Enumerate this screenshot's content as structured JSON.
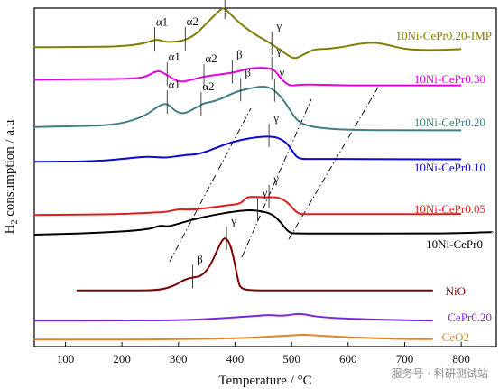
{
  "chart_data": {
    "type": "line",
    "xlabel": "Temperature / °C",
    "ylabel": "H2 consumption / a.u",
    "xlim": [
      45,
      862
    ],
    "x_ticks": [
      100,
      200,
      300,
      400,
      500,
      600,
      700,
      800
    ],
    "grid": false,
    "legend": "inline labels at right of each curve",
    "series": [
      {
        "name": "10Ni-CePr0.20-IMP",
        "color": "#808000",
        "points": [
          [
            45,
            0.62
          ],
          [
            120,
            0.62
          ],
          [
            200,
            0.64
          ],
          [
            240,
            0.75
          ],
          [
            255,
            0.86
          ],
          [
            265,
            0.88
          ],
          [
            275,
            0.8
          ],
          [
            290,
            0.8
          ],
          [
            305,
            0.83
          ],
          [
            315,
            0.9
          ],
          [
            330,
            1.05
          ],
          [
            350,
            1.45
          ],
          [
            370,
            1.85
          ],
          [
            380,
            2.0
          ],
          [
            390,
            1.8
          ],
          [
            405,
            1.5
          ],
          [
            430,
            1.12
          ],
          [
            450,
            0.9
          ],
          [
            470,
            0.66
          ],
          [
            490,
            0.38
          ],
          [
            505,
            0.2
          ],
          [
            520,
            0.35
          ],
          [
            540,
            0.55
          ],
          [
            560,
            0.55
          ],
          [
            590,
            0.62
          ],
          [
            620,
            0.74
          ],
          [
            645,
            0.78
          ],
          [
            665,
            0.72
          ],
          [
            700,
            0.55
          ],
          [
            730,
            0.52
          ],
          [
            760,
            0.52
          ],
          [
            800,
            0.55
          ]
        ],
        "annotations": [
          {
            "label": "α1",
            "x": 258
          },
          {
            "label": "α2",
            "x": 312
          },
          {
            "label": "β",
            "x": 382
          },
          {
            "label": "γ",
            "x": 465
          }
        ]
      },
      {
        "name": "10Ni-CePr0.30",
        "color": "#e600e6",
        "points": [
          [
            45,
            0.52
          ],
          [
            130,
            0.55
          ],
          [
            200,
            0.55
          ],
          [
            240,
            0.6
          ],
          [
            262,
            0.9
          ],
          [
            275,
            0.78
          ],
          [
            300,
            0.42
          ],
          [
            320,
            0.5
          ],
          [
            340,
            0.62
          ],
          [
            360,
            0.7
          ],
          [
            380,
            0.75
          ],
          [
            400,
            0.82
          ],
          [
            425,
            0.97
          ],
          [
            445,
            1.0
          ],
          [
            460,
            0.98
          ],
          [
            470,
            0.9
          ],
          [
            480,
            0.6
          ],
          [
            490,
            0.38
          ],
          [
            500,
            0.28
          ],
          [
            520,
            0.34
          ],
          [
            550,
            0.32
          ],
          [
            600,
            0.3
          ],
          [
            700,
            0.3
          ],
          [
            800,
            0.3
          ]
        ],
        "annotations": [
          {
            "label": "α1",
            "x": 280
          },
          {
            "label": "α2",
            "x": 345
          },
          {
            "label": "β",
            "x": 395
          },
          {
            "label": "γ",
            "x": 465
          }
        ]
      },
      {
        "name": "10Ni-CePr0.20",
        "color": "#3f7f7f",
        "points": [
          [
            45,
            0.42
          ],
          [
            120,
            0.45
          ],
          [
            190,
            0.5
          ],
          [
            240,
            0.85
          ],
          [
            265,
            1.3
          ],
          [
            280,
            1.4
          ],
          [
            295,
            1.05
          ],
          [
            310,
            0.95
          ],
          [
            330,
            1.2
          ],
          [
            345,
            1.4
          ],
          [
            360,
            1.45
          ],
          [
            380,
            1.62
          ],
          [
            400,
            1.85
          ],
          [
            425,
            2.0
          ],
          [
            450,
            2.1
          ],
          [
            465,
            2.0
          ],
          [
            480,
            1.7
          ],
          [
            495,
            1.2
          ],
          [
            510,
            0.65
          ],
          [
            530,
            0.45
          ],
          [
            560,
            0.36
          ],
          [
            600,
            0.3
          ],
          [
            700,
            0.28
          ],
          [
            800,
            0.28
          ]
        ],
        "annotations": [
          {
            "label": "α1",
            "x": 280
          },
          {
            "label": "α2",
            "x": 340
          },
          {
            "label": "β",
            "x": 410
          },
          {
            "label": "γ",
            "x": 470
          }
        ]
      },
      {
        "name": "10Ni-CePr0.10",
        "color": "#0a0ad0",
        "points": [
          [
            45,
            0.1
          ],
          [
            150,
            0.12
          ],
          [
            210,
            0.3
          ],
          [
            240,
            0.42
          ],
          [
            260,
            0.38
          ],
          [
            280,
            0.35
          ],
          [
            300,
            0.46
          ],
          [
            315,
            0.52
          ],
          [
            330,
            0.55
          ],
          [
            350,
            0.72
          ],
          [
            380,
            1.15
          ],
          [
            410,
            1.45
          ],
          [
            440,
            1.62
          ],
          [
            460,
            1.66
          ],
          [
            475,
            1.6
          ],
          [
            490,
            1.3
          ],
          [
            500,
            0.85
          ],
          [
            510,
            0.3
          ],
          [
            530,
            0.26
          ],
          [
            560,
            0.28
          ],
          [
            700,
            0.25
          ],
          [
            800,
            0.25
          ]
        ],
        "annotations": [
          {
            "label": "γ",
            "x": 460
          }
        ]
      },
      {
        "name": "10Ni-CePr0.05",
        "color": "#dc1e1e",
        "points": [
          [
            45,
            0.2
          ],
          [
            130,
            0.22
          ],
          [
            200,
            0.25
          ],
          [
            260,
            0.35
          ],
          [
            280,
            0.38
          ],
          [
            300,
            0.55
          ],
          [
            320,
            0.5
          ],
          [
            350,
            0.6
          ],
          [
            390,
            0.78
          ],
          [
            410,
            0.85
          ],
          [
            420,
            1.25
          ],
          [
            435,
            1.26
          ],
          [
            455,
            1.22
          ],
          [
            470,
            1.25
          ],
          [
            480,
            1.18
          ],
          [
            495,
            0.9
          ],
          [
            510,
            0.26
          ],
          [
            530,
            0.25
          ],
          [
            700,
            0.25
          ],
          [
            800,
            0.26
          ]
        ],
        "annotations": [
          {
            "label": "γ",
            "x": 460
          }
        ]
      },
      {
        "name": "10Ni-CePr0",
        "color": "#000000",
        "points": [
          [
            45,
            0.18
          ],
          [
            120,
            0.22
          ],
          [
            200,
            0.3
          ],
          [
            250,
            0.4
          ],
          [
            268,
            0.55
          ],
          [
            280,
            0.5
          ],
          [
            290,
            0.55
          ],
          [
            310,
            0.68
          ],
          [
            330,
            0.8
          ],
          [
            360,
            0.95
          ],
          [
            400,
            1.1
          ],
          [
            425,
            1.15
          ],
          [
            445,
            1.12
          ],
          [
            465,
            1.0
          ],
          [
            480,
            0.7
          ],
          [
            495,
            0.25
          ],
          [
            510,
            0.22
          ],
          [
            600,
            0.22
          ],
          [
            700,
            0.22
          ],
          [
            800,
            0.24
          ],
          [
            855,
            0.28
          ]
        ],
        "annotations": [
          {
            "label": "γ",
            "x": 440
          }
        ]
      },
      {
        "name": "NiO",
        "color": "#800000",
        "points": [
          [
            120,
            0.02
          ],
          [
            230,
            0.02
          ],
          [
            270,
            0.03
          ],
          [
            295,
            0.12
          ],
          [
            310,
            0.22
          ],
          [
            325,
            0.26
          ],
          [
            340,
            0.28
          ],
          [
            355,
            0.45
          ],
          [
            370,
            0.8
          ],
          [
            380,
            1.0
          ],
          [
            388,
            0.95
          ],
          [
            395,
            0.75
          ],
          [
            405,
            0.22
          ],
          [
            410,
            0.04
          ],
          [
            440,
            0.02
          ],
          [
            500,
            0.02
          ],
          [
            700,
            0.02
          ],
          [
            750,
            0.02
          ]
        ],
        "annotations": [
          {
            "label": "β",
            "x": 325
          },
          {
            "label": "γ",
            "x": 385
          }
        ]
      },
      {
        "name": "CePr0.20",
        "color": "#7a28e0",
        "points": [
          [
            45,
            0.04
          ],
          [
            200,
            0.04
          ],
          [
            300,
            0.06
          ],
          [
            350,
            0.12
          ],
          [
            400,
            0.22
          ],
          [
            440,
            0.3
          ],
          [
            460,
            0.36
          ],
          [
            480,
            0.3
          ],
          [
            500,
            0.36
          ],
          [
            510,
            0.42
          ],
          [
            525,
            0.38
          ],
          [
            545,
            0.25
          ],
          [
            600,
            0.14
          ],
          [
            700,
            0.06
          ],
          [
            750,
            0.04
          ]
        ]
      },
      {
        "name": "CeO2",
        "color": "#e0862a",
        "points": [
          [
            45,
            0.04
          ],
          [
            200,
            0.04
          ],
          [
            300,
            0.06
          ],
          [
            400,
            0.12
          ],
          [
            450,
            0.2
          ],
          [
            500,
            0.3
          ],
          [
            520,
            0.34
          ],
          [
            545,
            0.3
          ],
          [
            600,
            0.18
          ],
          [
            700,
            0.08
          ],
          [
            750,
            0.06
          ]
        ]
      }
    ]
  },
  "watermark": "服务号 · 科研测试站"
}
